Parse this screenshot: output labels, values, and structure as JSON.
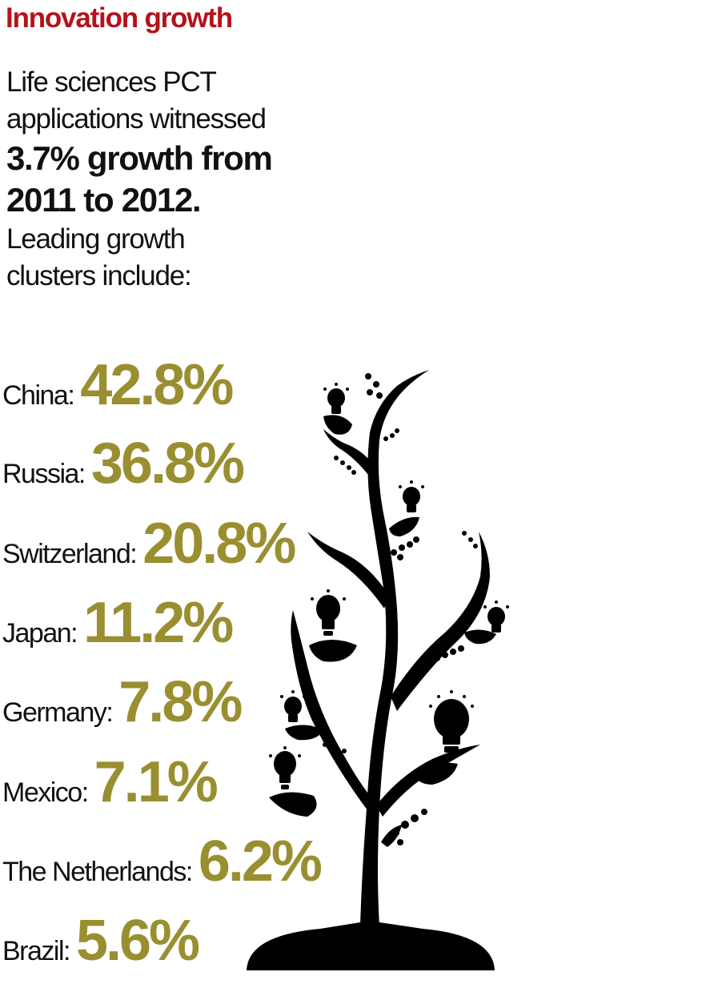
{
  "heading": {
    "title": "Innovation growth",
    "color": "#b5121b"
  },
  "intro": {
    "line1": "Life sciences PCT",
    "line2": "applications witnessed",
    "line3": "3.7% growth from",
    "line4": "2011 to 2012.",
    "line5": "Leading growth",
    "line6": "clusters include:"
  },
  "value_color": "#9a8f30",
  "clusters": [
    {
      "country": "China:",
      "value": "42.8%"
    },
    {
      "country": "Russia:",
      "value": "36.8%"
    },
    {
      "country": "Switzerland:",
      "value": "20.8%"
    },
    {
      "country": "Japan:",
      "value": "11.2%"
    },
    {
      "country": "Germany:",
      "value": "7.8%"
    },
    {
      "country": "Mexico:",
      "value": "7.1%"
    },
    {
      "country": "The Netherlands:",
      "value": "6.2%"
    },
    {
      "country": "Brazil:",
      "value": "5.6%"
    }
  ],
  "illustration": {
    "icon": "lightbulb-tree-icon",
    "color": "#000000"
  }
}
